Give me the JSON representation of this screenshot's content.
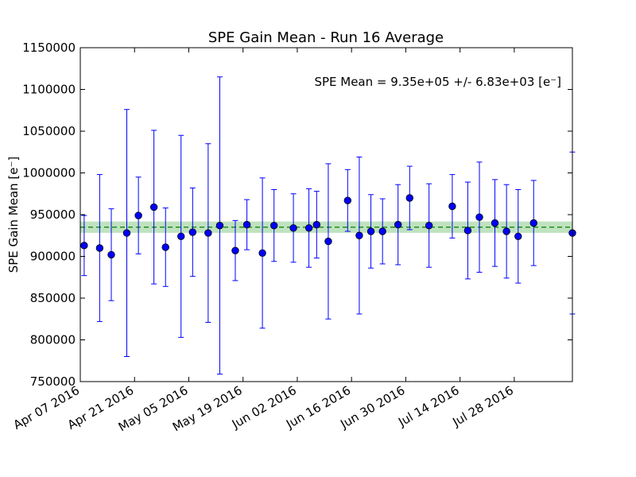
{
  "chart_data": {
    "type": "scatter",
    "title": "SPE Gain Mean - Run 16 Average",
    "ylabel": "SPE Gain Mean [e⁻]",
    "xlabel": "",
    "annotation": "SPE Mean = 9.35e+05 +/- 6.83e+03 [e⁻]",
    "x_range": [
      "2016-04-07",
      "2016-08-12"
    ],
    "ylim": [
      750000,
      1150000
    ],
    "y_ticks": [
      750000,
      800000,
      850000,
      900000,
      950000,
      1000000,
      1050000,
      1100000,
      1150000
    ],
    "x_ticks": [
      {
        "date": "2016-04-07",
        "label": "Apr 07 2016"
      },
      {
        "date": "2016-04-21",
        "label": "Apr 21 2016"
      },
      {
        "date": "2016-05-05",
        "label": "May 05 2016"
      },
      {
        "date": "2016-05-19",
        "label": "May 19 2016"
      },
      {
        "date": "2016-06-02",
        "label": "Jun 02 2016"
      },
      {
        "date": "2016-06-16",
        "label": "Jun 16 2016"
      },
      {
        "date": "2016-06-30",
        "label": "Jun 30 2016"
      },
      {
        "date": "2016-07-14",
        "label": "Jul 14 2016"
      },
      {
        "date": "2016-07-28",
        "label": "Jul 28 2016"
      }
    ],
    "mean_line": 935000,
    "mean_band": [
      928200,
      941800
    ],
    "grid": false,
    "colors": {
      "points": "#0000ff",
      "errorbars": "#0000ff",
      "mean_line": "#008000",
      "band": "#2ca02c"
    },
    "points": [
      {
        "x": "2016-04-08",
        "y": 913000,
        "err": 36000
      },
      {
        "x": "2016-04-12",
        "y": 910000,
        "err": 88000
      },
      {
        "x": "2016-04-15",
        "y": 902000,
        "err": 55000
      },
      {
        "x": "2016-04-19",
        "y": 928000,
        "err": 148000
      },
      {
        "x": "2016-04-22",
        "y": 949000,
        "err": 46000
      },
      {
        "x": "2016-04-26",
        "y": 959000,
        "err": 92000
      },
      {
        "x": "2016-04-29",
        "y": 911000,
        "err": 47000
      },
      {
        "x": "2016-05-03",
        "y": 924000,
        "err": 121000
      },
      {
        "x": "2016-05-06",
        "y": 929000,
        "err": 53000
      },
      {
        "x": "2016-05-10",
        "y": 928000,
        "err": 107000
      },
      {
        "x": "2016-05-13",
        "y": 937000,
        "err": 178000
      },
      {
        "x": "2016-05-17",
        "y": 907000,
        "err": 36000
      },
      {
        "x": "2016-05-20",
        "y": 938000,
        "err": 30000
      },
      {
        "x": "2016-05-24",
        "y": 904000,
        "err": 90000
      },
      {
        "x": "2016-05-27",
        "y": 937000,
        "err": 43000
      },
      {
        "x": "2016-06-01",
        "y": 934000,
        "err": 41000
      },
      {
        "x": "2016-06-05",
        "y": 934000,
        "err": 47000
      },
      {
        "x": "2016-06-07",
        "y": 938000,
        "err": 40000
      },
      {
        "x": "2016-06-10",
        "y": 918000,
        "err": 93000
      },
      {
        "x": "2016-06-15",
        "y": 967000,
        "err": 37000
      },
      {
        "x": "2016-06-18",
        "y": 925000,
        "err": 94000
      },
      {
        "x": "2016-06-21",
        "y": 930000,
        "err": 44000
      },
      {
        "x": "2016-06-24",
        "y": 930000,
        "err": 39000
      },
      {
        "x": "2016-06-28",
        "y": 938000,
        "err": 48000
      },
      {
        "x": "2016-07-01",
        "y": 970000,
        "err": 38000
      },
      {
        "x": "2016-07-06",
        "y": 937000,
        "err": 50000
      },
      {
        "x": "2016-07-12",
        "y": 960000,
        "err": 38000
      },
      {
        "x": "2016-07-16",
        "y": 931000,
        "err": 58000
      },
      {
        "x": "2016-07-19",
        "y": 947000,
        "err": 66000
      },
      {
        "x": "2016-07-23",
        "y": 940000,
        "err": 52000
      },
      {
        "x": "2016-07-26",
        "y": 930000,
        "err": 56000
      },
      {
        "x": "2016-07-29",
        "y": 924000,
        "err": 56000
      },
      {
        "x": "2016-08-02",
        "y": 940000,
        "err": 51000
      },
      {
        "x": "2016-08-12",
        "y": 928000,
        "err": 97000
      }
    ]
  }
}
